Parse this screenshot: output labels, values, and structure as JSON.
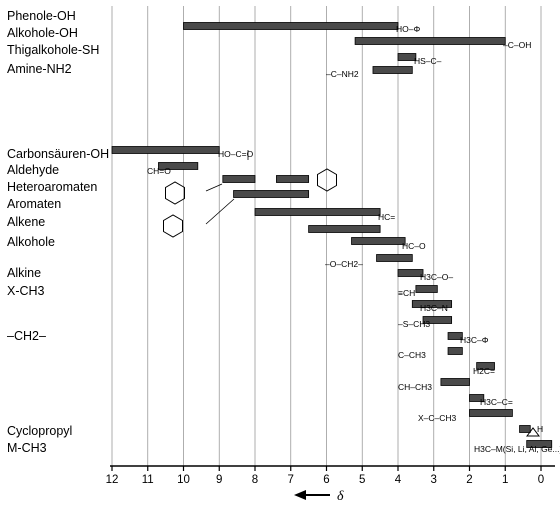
{
  "chart_data": {
    "type": "bar",
    "x_axis": {
      "reversed": true,
      "xlim": [
        12,
        0
      ],
      "ticks": [
        "12",
        "11",
        "10",
        "9",
        "8",
        "7",
        "6",
        "5",
        "4",
        "3",
        "2",
        "1",
        "0"
      ],
      "label": "δ"
    },
    "grid": "vertical",
    "group_labels": [
      "Phenole-OH",
      "Alkohole-OH",
      "Thigalkohole-SH",
      "Amine-NH2",
      "Carbonsäuren-OH",
      "Aldehyde",
      "Heteroaromaten",
      "Aromaten",
      "Alkene",
      "Alkohole",
      "Alkine",
      "X-CH3",
      "–CH2–",
      "Cyclopropyl",
      "M-CH3"
    ],
    "ranges": [
      {
        "from": 10.0,
        "to": 4.0,
        "color": "#4a4a4a"
      },
      {
        "from": 5.2,
        "to": 1.0,
        "color": "#4a4a4a"
      },
      {
        "from": 4.0,
        "to": 3.5,
        "color": "#4a4a4a"
      },
      {
        "from": 4.7,
        "to": 3.6,
        "color": "#4a4a4a"
      },
      {
        "from": 12.0,
        "to": 9.0,
        "color": "#4a4a4a"
      },
      {
        "from": 10.7,
        "to": 9.6,
        "color": "#4a4a4a"
      },
      {
        "from": 8.9,
        "to": 8.0,
        "color": "#4a4a4a"
      },
      {
        "from": 7.4,
        "to": 6.5,
        "color": "#4a4a4a"
      },
      {
        "from": 8.6,
        "to": 6.5,
        "color": "#4a4a4a"
      },
      {
        "from": 8.0,
        "to": 4.5,
        "color": "#4a4a4a"
      },
      {
        "from": 6.5,
        "to": 4.5,
        "color": "#4a4a4a"
      },
      {
        "from": 5.3,
        "to": 3.8,
        "color": "#4a4a4a"
      },
      {
        "from": 4.6,
        "to": 3.6,
        "color": "#4a4a4a"
      },
      {
        "from": 4.0,
        "to": 3.3,
        "color": "#4a4a4a"
      },
      {
        "from": 3.5,
        "to": 2.9,
        "color": "#4a4a4a"
      },
      {
        "from": 3.6,
        "to": 2.5,
        "color": "#4a4a4a"
      },
      {
        "from": 3.3,
        "to": 2.5,
        "color": "#4a4a4a"
      },
      {
        "from": 2.6,
        "to": 2.2,
        "color": "#4a4a4a"
      },
      {
        "from": 2.6,
        "to": 2.2,
        "color": "#4a4a4a"
      },
      {
        "from": 1.8,
        "to": 1.3,
        "color": "#4a4a4a"
      },
      {
        "from": 2.8,
        "to": 2.0,
        "color": "#4a4a4a"
      },
      {
        "from": 2.0,
        "to": 1.6,
        "color": "#4a4a4a"
      },
      {
        "from": 2.0,
        "to": 0.8,
        "color": "#4a4a4a"
      },
      {
        "from": 0.6,
        "to": 0.3,
        "color": "#4a4a4a"
      },
      {
        "from": 0.4,
        "to": -0.3,
        "color": "#4a4a4a"
      }
    ],
    "annotations": [
      "HO–Φ",
      "–C–OH",
      "HS–C–",
      "–C–NH2",
      "HO–C=O",
      "CH=O",
      "HC=",
      "HC–O",
      "–O–CH2–",
      "H3C–O–",
      "≡CH",
      "H3C–N",
      "–S–CH3",
      "H3C–Φ",
      "C–CH3",
      "H2C=",
      "CH–CH3",
      "H3C–C=",
      "X–C–CH3",
      "H",
      "H3C–M(Si, Li, Al, Ge...)"
    ]
  }
}
